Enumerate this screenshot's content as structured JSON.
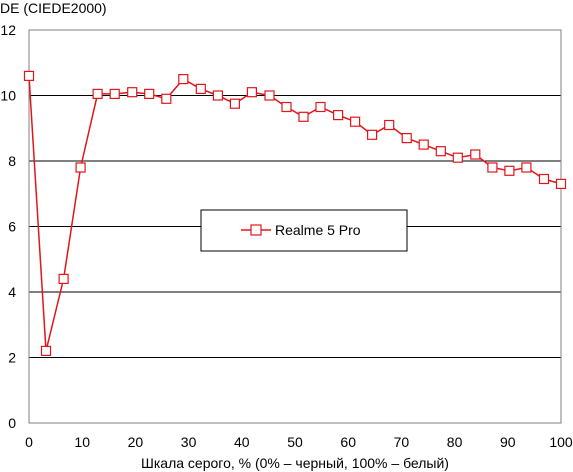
{
  "chart_data": {
    "type": "line",
    "ylabel": "DE (CIEDE2000)",
    "xlabel": "Шкала серого, % (0% – черный, 100% – белый)",
    "xlim": [
      0,
      100
    ],
    "ylim": [
      0,
      12
    ],
    "xticks": [
      0,
      10,
      20,
      30,
      40,
      50,
      60,
      70,
      80,
      90,
      100
    ],
    "yticks": [
      0,
      2,
      4,
      6,
      8,
      10,
      12
    ],
    "grid": "horizontal",
    "legend_position": "center",
    "series": [
      {
        "name": "Realme 5 Pro",
        "color": "#e0161b",
        "marker": "square",
        "x": [
          0,
          3.2,
          6.5,
          9.7,
          12.9,
          16.1,
          19.4,
          22.6,
          25.8,
          29.0,
          32.3,
          35.5,
          38.7,
          41.9,
          45.2,
          48.4,
          51.6,
          54.8,
          58.1,
          61.3,
          64.5,
          67.7,
          71.0,
          74.2,
          77.4,
          80.6,
          83.9,
          87.1,
          90.3,
          93.5,
          96.8,
          100
        ],
        "y": [
          10.6,
          2.2,
          4.4,
          7.8,
          10.05,
          10.05,
          10.1,
          10.05,
          9.9,
          10.5,
          10.2,
          10.0,
          9.75,
          10.1,
          10.0,
          9.65,
          9.35,
          9.65,
          9.4,
          9.2,
          8.8,
          9.1,
          8.7,
          8.5,
          8.3,
          8.1,
          8.2,
          7.8,
          7.7,
          7.8,
          7.45,
          7.3
        ]
      }
    ]
  }
}
